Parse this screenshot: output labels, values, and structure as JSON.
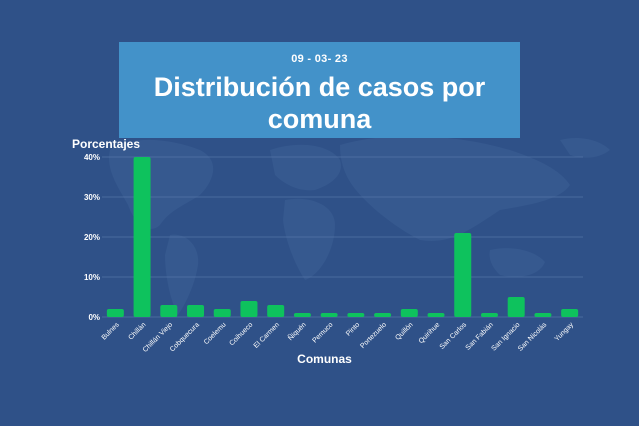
{
  "header": {
    "date": "09 - 03- 23",
    "title_line1": "Distribución de casos por",
    "title_line2": "comuna"
  },
  "colors": {
    "background": "#2f5188",
    "title_box": "#4392c9",
    "bar": "#0ec25d",
    "grid": "#5574a6"
  },
  "chart_data": {
    "type": "bar",
    "ylabel": "Porcentajes",
    "xlabel": "Comunas",
    "ylim": [
      0,
      40
    ],
    "yticks": [
      "0%",
      "10%",
      "20%",
      "30%",
      "40%"
    ],
    "ytick_values": [
      0,
      10,
      20,
      30,
      40
    ],
    "grid": true,
    "categories": [
      "Bulnes",
      "Chillán",
      "Chillán Viejo",
      "Cobquecura",
      "Coelemu",
      "Coihueco",
      "El Carmen",
      "Ñiquén",
      "Pemuco",
      "Pinto",
      "Portezuelo",
      "Quillón",
      "Quirihue",
      "San Carlos",
      "San Fabián",
      "San Ignacio",
      "San Nicolás",
      "Yungay"
    ],
    "values": [
      2,
      40,
      3,
      3,
      2,
      4,
      3,
      1,
      1,
      1,
      1,
      2,
      1,
      21,
      1,
      5,
      1,
      2
    ]
  }
}
